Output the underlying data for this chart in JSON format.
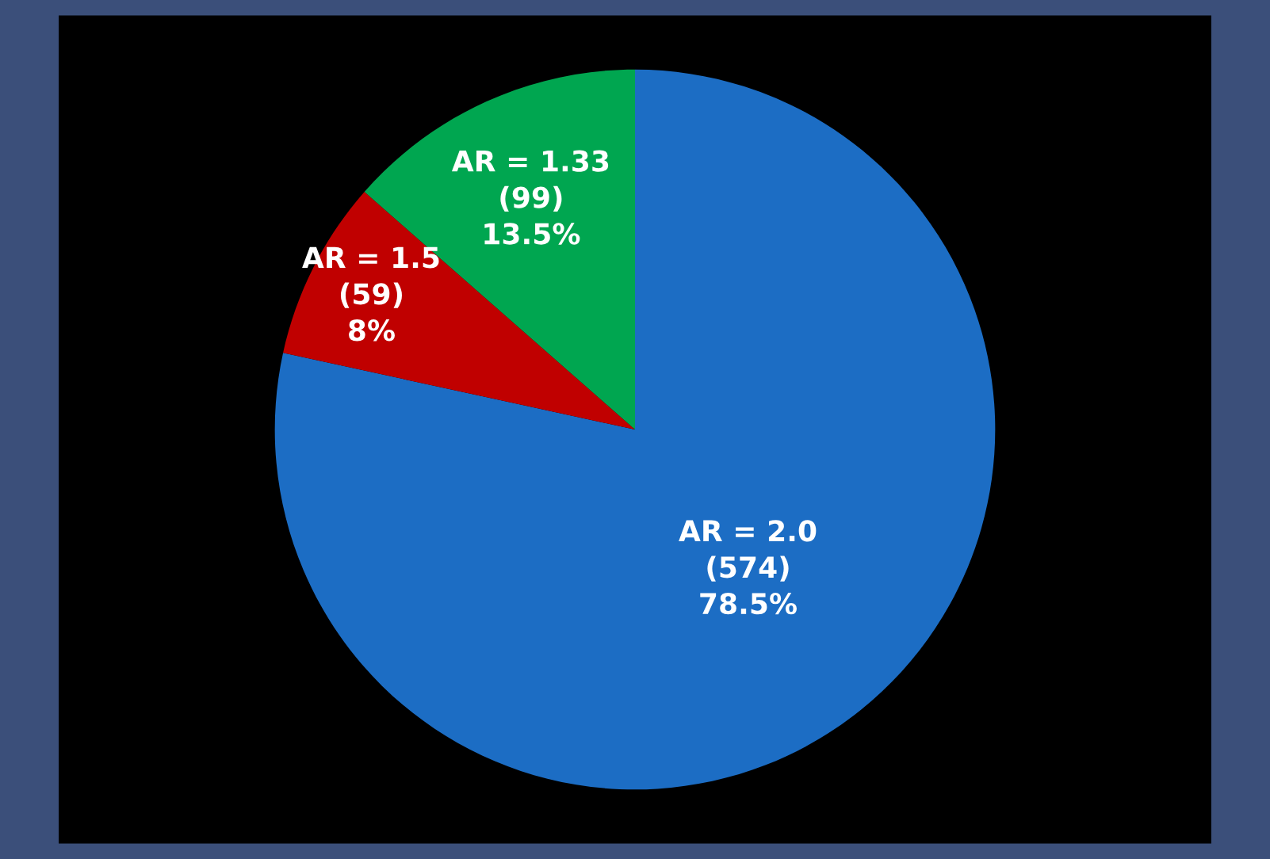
{
  "chart_data": {
    "type": "pie",
    "categories": [
      "AR = 2.0",
      "AR = 1.5",
      "AR = 1.33"
    ],
    "values": [
      574,
      59,
      99
    ],
    "value_labels": [
      "(574)\n78.5%",
      "(59)\n8%",
      "(99)\n13.5%"
    ],
    "colors": [
      "#1c6dc4",
      "#c00000",
      "#00a650"
    ]
  }
}
